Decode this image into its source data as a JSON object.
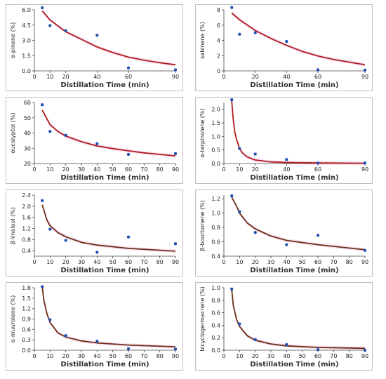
{
  "figure": {
    "colors": {
      "point": "#1f4fb3",
      "fit_red": "#b01c1c",
      "fit_brown": "#6b2d13",
      "shade": "#f7ddf4",
      "frame": "#bfbfbf"
    }
  },
  "chart_data": [
    {
      "type": "scatter",
      "fit": "decay",
      "fit_color": "#b01c1c",
      "xlabel": "Distillation Time (min)",
      "ylabel": "α-pinene (%)",
      "xlim": [
        0,
        90
      ],
      "ylim": [
        0,
        6.0
      ],
      "xticks": [
        0,
        10,
        20,
        40,
        60,
        90
      ],
      "xtick_labels": [
        "0",
        "10",
        "20",
        "40",
        "60",
        "90"
      ],
      "yticks": [
        0,
        1.5,
        3.0,
        4.5,
        6.0
      ],
      "ytick_labels": [
        "0.0",
        "1.5",
        "3.0",
        "4.5",
        "6.0"
      ],
      "x": [
        5,
        10,
        20,
        40,
        60,
        90
      ],
      "y": [
        6.2,
        4.45,
        3.95,
        3.5,
        0.3,
        0.1
      ],
      "fit_x": [
        5,
        10,
        20,
        30,
        40,
        50,
        60,
        70,
        80,
        90
      ],
      "fit_y": [
        5.9,
        5.0,
        3.85,
        3.1,
        2.35,
        1.8,
        1.35,
        1.05,
        0.8,
        0.6
      ]
    },
    {
      "type": "scatter",
      "fit": "decay",
      "fit_color": "#b01c1c",
      "xlabel": "Distillation Time (min)",
      "ylabel": "sabinene (%)",
      "xlim": [
        0,
        90
      ],
      "ylim": [
        0,
        8
      ],
      "xticks": [
        0,
        20,
        40,
        60,
        90
      ],
      "xtick_labels": [
        "0",
        "20",
        "40",
        "60",
        "90"
      ],
      "yticks": [
        0,
        2,
        4,
        6,
        8
      ],
      "ytick_labels": [
        "0",
        "2",
        "4",
        "6",
        "8"
      ],
      "x": [
        5,
        10,
        20,
        40,
        60,
        90
      ],
      "y": [
        8.3,
        4.8,
        5.0,
        3.85,
        0.15,
        0.1
      ],
      "fit_x": [
        5,
        10,
        20,
        30,
        40,
        50,
        60,
        70,
        80,
        90
      ],
      "fit_y": [
        7.6,
        6.7,
        5.3,
        4.25,
        3.35,
        2.55,
        1.95,
        1.5,
        1.15,
        0.8
      ]
    },
    {
      "type": "scatter",
      "fit": "decay",
      "fit_color": "#b01c1c",
      "xlabel": "Distillation Time (min)",
      "ylabel": "eucalyptol (%)",
      "xlim": [
        0,
        90
      ],
      "ylim": [
        20,
        60
      ],
      "xticks": [
        0,
        10,
        20,
        30,
        40,
        50,
        60,
        70,
        80,
        90
      ],
      "xtick_labels": [
        "0",
        "10",
        "20",
        "30",
        "40",
        "50",
        "60",
        "70",
        "80",
        "90"
      ],
      "yticks": [
        20,
        30,
        40,
        50,
        60
      ],
      "ytick_labels": [
        "20",
        "30",
        "40",
        "50",
        "60"
      ],
      "x": [
        5,
        10,
        20,
        40,
        60,
        90
      ],
      "y": [
        58.5,
        41.0,
        38.5,
        33.0,
        26.0,
        26.5
      ],
      "fit_x": [
        5,
        10,
        15,
        20,
        30,
        40,
        50,
        60,
        70,
        80,
        90
      ],
      "fit_y": [
        55.0,
        45.5,
        41.0,
        38.0,
        34.3,
        31.5,
        29.8,
        28.3,
        27.0,
        26.0,
        25.0
      ]
    },
    {
      "type": "scatter",
      "fit": "decay",
      "fit_color": "#b01c1c",
      "xlabel": "Distillation Time (min)",
      "ylabel": "α-terpinolene (%)",
      "xlim": [
        0,
        90
      ],
      "ylim": [
        0,
        2.25
      ],
      "xticks": [
        0,
        10,
        20,
        40,
        60,
        90
      ],
      "xtick_labels": [
        "0",
        "10",
        "20",
        "40",
        "60",
        "90"
      ],
      "yticks": [
        0,
        0.5,
        1.0,
        1.5,
        2.0
      ],
      "ytick_labels": [
        "0.0",
        "0.5",
        "1.0",
        "1.5",
        "2.0"
      ],
      "x": [
        5,
        10,
        20,
        40,
        60,
        90
      ],
      "y": [
        2.35,
        0.55,
        0.35,
        0.15,
        0.02,
        0.02
      ],
      "fit_x": [
        5,
        6,
        7,
        8,
        10,
        12,
        15,
        20,
        30,
        40,
        60,
        90
      ],
      "fit_y": [
        2.3,
        1.6,
        1.15,
        0.9,
        0.55,
        0.38,
        0.24,
        0.13,
        0.06,
        0.04,
        0.02,
        0.01
      ]
    },
    {
      "type": "scatter",
      "fit": "decay",
      "fit_color": "#6b2d13",
      "xlabel": "Distillation Time (min)",
      "ylabel": "β-linalool (%)",
      "xlim": [
        0,
        90
      ],
      "ylim": [
        0.2,
        2.4
      ],
      "xticks": [
        0,
        10,
        20,
        30,
        40,
        50,
        60,
        70,
        80,
        90
      ],
      "xtick_labels": [
        "0",
        "10",
        "20",
        "30",
        "40",
        "50",
        "60",
        "70",
        "80",
        "90"
      ],
      "yticks": [
        0.4,
        0.8,
        1.2,
        1.6,
        2.0,
        2.4
      ],
      "ytick_labels": [
        "0.4",
        "0.8",
        "1.2",
        "1.6",
        "2.0",
        "2.4"
      ],
      "x": [
        5,
        10,
        20,
        40,
        60,
        90
      ],
      "y": [
        2.2,
        1.17,
        0.77,
        0.34,
        0.89,
        0.65
      ],
      "fit_x": [
        5,
        8,
        10,
        15,
        20,
        30,
        40,
        60,
        90
      ],
      "fit_y": [
        2.05,
        1.5,
        1.3,
        1.05,
        0.9,
        0.7,
        0.6,
        0.48,
        0.38
      ]
    },
    {
      "type": "scatter",
      "fit": "decay",
      "fit_color": "#6b2d13",
      "xlabel": "Distillation Time (min)",
      "ylabel": "β-bourbonene (%)",
      "xlim": [
        0,
        90
      ],
      "ylim": [
        0.4,
        1.25
      ],
      "xticks": [
        0,
        10,
        20,
        30,
        40,
        50,
        60,
        70,
        80,
        90
      ],
      "xtick_labels": [
        "0",
        "10",
        "20",
        "30",
        "40",
        "50",
        "60",
        "70",
        "80",
        "90"
      ],
      "yticks": [
        0.4,
        0.6,
        0.8,
        1.0,
        1.2
      ],
      "ytick_labels": [
        "0.4",
        "0.6",
        "0.8",
        "1.0",
        "1.2"
      ],
      "x": [
        5,
        10,
        20,
        40,
        60,
        90
      ],
      "y": [
        1.24,
        1.02,
        0.73,
        0.56,
        0.69,
        0.48
      ],
      "fit_x": [
        5,
        8,
        10,
        15,
        20,
        30,
        40,
        60,
        90
      ],
      "fit_y": [
        1.22,
        1.1,
        1.0,
        0.86,
        0.78,
        0.68,
        0.62,
        0.56,
        0.49
      ]
    },
    {
      "type": "scatter",
      "fit": "decay",
      "fit_color": "#6b2d13",
      "xlabel": "Distillation Time (min)",
      "ylabel": "α-muurolene (%)",
      "xlim": [
        0,
        90
      ],
      "ylim": [
        0,
        1.8
      ],
      "xticks": [
        0,
        10,
        20,
        30,
        40,
        50,
        60,
        70,
        80,
        90
      ],
      "xtick_labels": [
        "0",
        "10",
        "20",
        "30",
        "40",
        "50",
        "60",
        "70",
        "80",
        "90"
      ],
      "yticks": [
        0,
        0.3,
        0.6,
        0.9,
        1.2,
        1.5,
        1.8
      ],
      "ytick_labels": [
        "0.0",
        "0.3",
        "0.6",
        "0.9",
        "1.2",
        "1.5",
        "1.8"
      ],
      "x": [
        5,
        10,
        20,
        40,
        60,
        90
      ],
      "y": [
        1.83,
        0.88,
        0.42,
        0.26,
        0.04,
        0.03
      ],
      "fit_x": [
        5,
        6,
        8,
        10,
        15,
        20,
        30,
        40,
        60,
        90
      ],
      "fit_y": [
        1.82,
        1.45,
        1.05,
        0.8,
        0.5,
        0.38,
        0.27,
        0.21,
        0.15,
        0.1
      ]
    },
    {
      "type": "scatter",
      "fit": "decay",
      "fit_color": "#6b2d13",
      "xlabel": "Distillation Time (min)",
      "ylabel": "bicyclogermacrene (%)",
      "xlim": [
        0,
        90
      ],
      "ylim": [
        0,
        1.0
      ],
      "xticks": [
        0,
        10,
        20,
        30,
        40,
        50,
        60,
        70,
        80,
        90
      ],
      "xtick_labels": [
        "0",
        "10",
        "20",
        "30",
        "40",
        "50",
        "60",
        "70",
        "80",
        "90"
      ],
      "yticks": [
        0,
        0.2,
        0.4,
        0.6,
        0.8,
        1.0
      ],
      "ytick_labels": [
        "0.0",
        "0.2",
        "0.4",
        "0.6",
        "0.8",
        "1.0"
      ],
      "x": [
        5,
        10,
        20,
        40,
        60,
        90
      ],
      "y": [
        0.98,
        0.42,
        0.17,
        0.09,
        0.01,
        0.0
      ],
      "fit_x": [
        5,
        6,
        8,
        10,
        15,
        20,
        30,
        40,
        60,
        90
      ],
      "fit_y": [
        0.97,
        0.72,
        0.5,
        0.38,
        0.23,
        0.16,
        0.1,
        0.07,
        0.045,
        0.03
      ]
    }
  ]
}
